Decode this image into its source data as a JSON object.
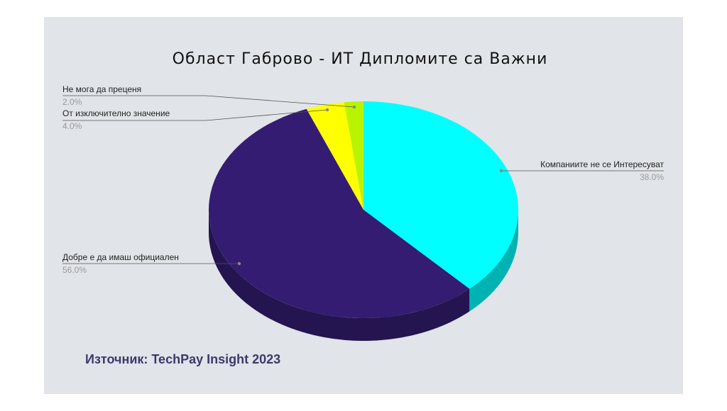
{
  "chart_data": {
    "type": "pie",
    "title": "Област Габрово - ИТ Дипломите са Важни",
    "categories": [
      "Компаниите не се Интересуват",
      "Добре е да имаш официален",
      "От изключително значение",
      "Не мога да преценя"
    ],
    "values": [
      38,
      56,
      4,
      2
    ],
    "value_labels": [
      "38.0%",
      "56.0%",
      "4.0%",
      "2.0%"
    ],
    "colors": [
      "#00ffff",
      "#341c72",
      "#ffff00",
      "#b8f400"
    ],
    "source": "Източник: TechPay Insight 2023"
  }
}
